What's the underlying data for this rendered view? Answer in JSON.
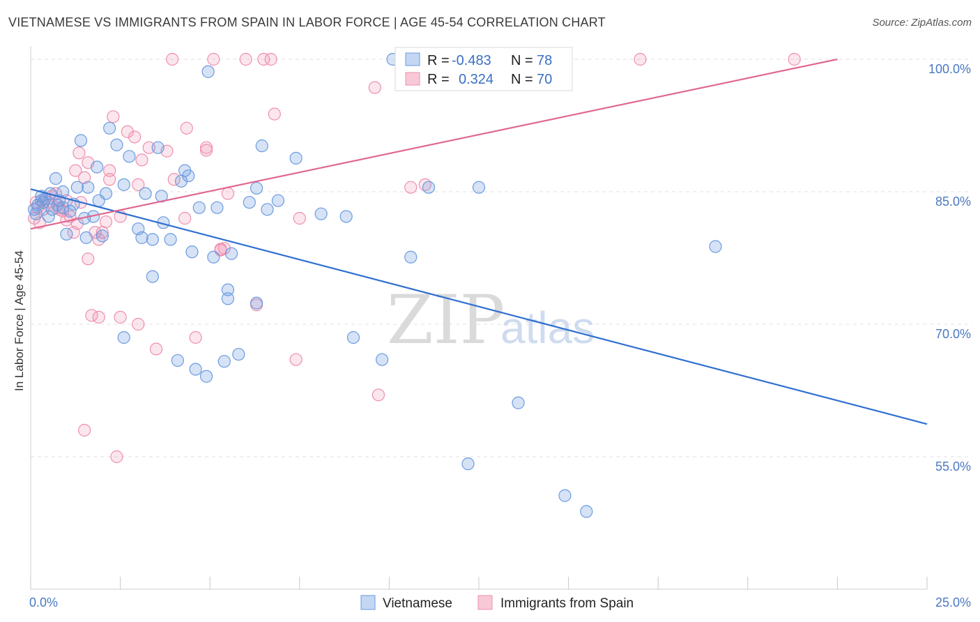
{
  "title": "VIETNAMESE VS IMMIGRANTS FROM SPAIN IN LABOR FORCE | AGE 45-54 CORRELATION CHART",
  "source": "Source: ZipAtlas.com",
  "watermark": "ZIPatlas",
  "colors": {
    "vietnamese": "#6b9be0",
    "spain": "#ef8fae",
    "vietnamese_line": "#2f6fd0",
    "spain_line": "#e06890",
    "tick_label": "#4a78c2"
  },
  "legend": {
    "r_label": "R =",
    "n_label": "N =",
    "vietnamese_r": "-0.483",
    "vietnamese_n": "78",
    "spain_r": "0.324",
    "spain_n": "70"
  },
  "chart_data": {
    "type": "scatter",
    "title": "VIETNAMESE VS IMMIGRANTS FROM SPAIN IN LABOR FORCE | AGE 45-54 CORRELATION CHART",
    "xlabel": "",
    "ylabel": "In Labor Force | Age 45-54",
    "xlim": [
      0,
      25
    ],
    "ylim": [
      40,
      101.5
    ],
    "x_tick_labels": [
      "0.0%",
      "25.0%"
    ],
    "y_ticks": [
      55,
      70,
      85,
      100
    ],
    "y_tick_labels": [
      "55.0%",
      "70.0%",
      "85.0%",
      "100.0%"
    ],
    "grid": true,
    "legend_placement": "top-center",
    "series": [
      {
        "name": "Vietnamese",
        "trend": {
          "x": [
            0,
            25
          ],
          "y": [
            85.3,
            58.7
          ]
        },
        "points": [
          [
            0.1,
            83.0
          ],
          [
            0.15,
            82.5
          ],
          [
            0.2,
            83.5
          ],
          [
            0.3,
            84.5
          ],
          [
            0.35,
            83.8
          ],
          [
            0.4,
            84.2
          ],
          [
            0.5,
            82.2
          ],
          [
            0.55,
            84.8
          ],
          [
            0.6,
            83.0
          ],
          [
            0.7,
            86.5
          ],
          [
            0.75,
            83.5
          ],
          [
            0.8,
            84.0
          ],
          [
            0.9,
            85.0
          ],
          [
            1.0,
            80.2
          ],
          [
            1.1,
            82.8
          ],
          [
            1.2,
            83.6
          ],
          [
            1.3,
            85.5
          ],
          [
            1.4,
            90.8
          ],
          [
            1.5,
            82.0
          ],
          [
            1.55,
            79.8
          ],
          [
            1.6,
            85.5
          ],
          [
            1.75,
            82.2
          ],
          [
            1.85,
            87.8
          ],
          [
            1.9,
            84.0
          ],
          [
            2.0,
            80.0
          ],
          [
            2.1,
            84.8
          ],
          [
            2.2,
            92.2
          ],
          [
            2.4,
            90.3
          ],
          [
            2.6,
            85.8
          ],
          [
            2.75,
            89.0
          ],
          [
            3.0,
            80.8
          ],
          [
            3.1,
            79.8
          ],
          [
            3.2,
            84.8
          ],
          [
            3.4,
            79.6
          ],
          [
            3.55,
            90.0
          ],
          [
            3.65,
            84.5
          ],
          [
            3.7,
            81.5
          ],
          [
            3.9,
            79.6
          ],
          [
            4.2,
            86.2
          ],
          [
            4.3,
            87.4
          ],
          [
            4.4,
            86.8
          ],
          [
            4.5,
            78.2
          ],
          [
            4.7,
            83.2
          ],
          [
            4.95,
            98.6
          ],
          [
            5.1,
            77.6
          ],
          [
            5.2,
            83.2
          ],
          [
            5.5,
            73.9
          ],
          [
            5.6,
            78.0
          ],
          [
            5.8,
            66.6
          ],
          [
            6.1,
            83.8
          ],
          [
            6.3,
            85.4
          ],
          [
            6.45,
            90.2
          ],
          [
            6.6,
            83.0
          ],
          [
            6.9,
            84.0
          ],
          [
            7.4,
            88.8
          ],
          [
            8.1,
            82.5
          ],
          [
            8.8,
            82.2
          ],
          [
            9.0,
            68.5
          ],
          [
            9.8,
            66.0
          ],
          [
            10.1,
            100.0
          ],
          [
            10.6,
            77.6
          ],
          [
            11.1,
            85.5
          ],
          [
            12.2,
            54.2
          ],
          [
            12.5,
            85.5
          ],
          [
            13.6,
            61.1
          ],
          [
            14.9,
            50.6
          ],
          [
            15.5,
            48.8
          ],
          [
            19.1,
            78.8
          ],
          [
            2.6,
            68.5
          ],
          [
            3.4,
            75.4
          ],
          [
            4.1,
            65.9
          ],
          [
            4.6,
            64.9
          ],
          [
            5.5,
            72.9
          ],
          [
            6.3,
            72.4
          ],
          [
            4.9,
            64.1
          ],
          [
            5.4,
            65.8
          ],
          [
            0.3,
            84.0
          ],
          [
            0.9,
            83.2
          ]
        ]
      },
      {
        "name": "Immigrants from Spain",
        "trend": {
          "x": [
            0,
            22.5
          ],
          "y": [
            80.8,
            100.0
          ]
        },
        "points": [
          [
            0.1,
            82.0
          ],
          [
            0.15,
            83.8
          ],
          [
            0.25,
            81.5
          ],
          [
            0.35,
            83.0
          ],
          [
            0.4,
            84.2
          ],
          [
            0.5,
            83.5
          ],
          [
            0.6,
            84.5
          ],
          [
            0.7,
            84.8
          ],
          [
            0.8,
            83.2
          ],
          [
            1.0,
            84.0
          ],
          [
            1.0,
            81.8
          ],
          [
            1.1,
            82.2
          ],
          [
            1.2,
            80.4
          ],
          [
            1.3,
            81.4
          ],
          [
            1.4,
            83.8
          ],
          [
            1.5,
            86.6
          ],
          [
            1.6,
            88.3
          ],
          [
            1.8,
            80.4
          ],
          [
            1.9,
            79.6
          ],
          [
            2.0,
            80.4
          ],
          [
            2.1,
            81.6
          ],
          [
            2.2,
            87.4
          ],
          [
            2.3,
            93.5
          ],
          [
            2.5,
            82.2
          ],
          [
            2.7,
            91.8
          ],
          [
            2.9,
            91.2
          ],
          [
            3.1,
            88.6
          ],
          [
            3.3,
            90.0
          ],
          [
            3.8,
            89.6
          ],
          [
            4.0,
            86.4
          ],
          [
            4.3,
            82.0
          ],
          [
            4.35,
            92.2
          ],
          [
            4.9,
            89.7
          ],
          [
            5.3,
            78.4
          ],
          [
            5.4,
            78.6
          ],
          [
            5.5,
            84.8
          ],
          [
            6.0,
            100.0
          ],
          [
            6.5,
            100.0
          ],
          [
            6.7,
            100.0
          ],
          [
            6.8,
            93.8
          ],
          [
            7.4,
            66.0
          ],
          [
            7.5,
            82.0
          ],
          [
            9.6,
            96.8
          ],
          [
            9.7,
            62.0
          ],
          [
            10.6,
            85.5
          ],
          [
            11.0,
            85.8
          ],
          [
            3.95,
            100.0
          ],
          [
            5.1,
            100.0
          ],
          [
            17.0,
            100.0
          ],
          [
            21.3,
            100.0
          ],
          [
            1.7,
            71.0
          ],
          [
            1.9,
            70.8
          ],
          [
            2.5,
            70.8
          ],
          [
            3.0,
            70.0
          ],
          [
            3.5,
            67.2
          ],
          [
            4.6,
            68.5
          ],
          [
            1.5,
            58.0
          ],
          [
            2.4,
            55.0
          ],
          [
            1.6,
            77.4
          ],
          [
            5.3,
            78.5
          ],
          [
            6.3,
            72.2
          ],
          [
            2.2,
            86.4
          ],
          [
            3.0,
            85.8
          ],
          [
            1.35,
            89.4
          ],
          [
            4.9,
            90.0
          ],
          [
            0.8,
            83.0
          ],
          [
            0.5,
            83.8
          ],
          [
            1.25,
            87.4
          ],
          [
            0.9,
            82.8
          ],
          [
            0.2,
            83.2
          ]
        ]
      }
    ]
  },
  "bottom_legend": {
    "vietnamese": "Vietnamese",
    "spain": "Immigrants from Spain"
  }
}
